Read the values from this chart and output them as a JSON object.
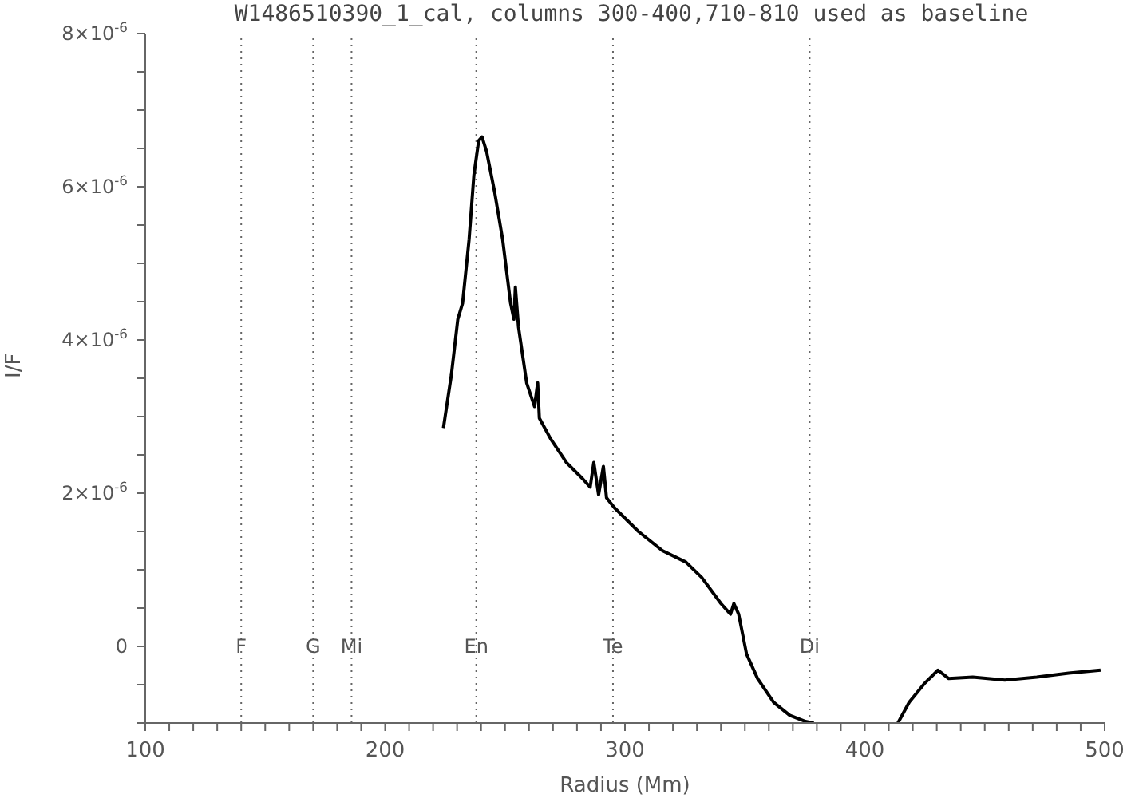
{
  "chart_data": {
    "type": "line",
    "title": "W1486510390_1_cal, columns 300-400,710-810 used as baseline",
    "xlabel": "Radius (Mm)",
    "ylabel": "I/F",
    "x": [
      224.3,
      227.6,
      230.3,
      232.3,
      235,
      237,
      239,
      240.4,
      242.3,
      245.6,
      249,
      252.3,
      253.7,
      254.3,
      255.6,
      259,
      262.3,
      263.6,
      264.3,
      269,
      275.6,
      282.3,
      285.5,
      287,
      289,
      291,
      292.3,
      295.6,
      305.6,
      315.6,
      325.4,
      332,
      340,
      344,
      345.4,
      347.4,
      350.7,
      355.3,
      362,
      368.7,
      375.3,
      378.7,
      395,
      413.8,
      418.5,
      425,
      430.5,
      435,
      445,
      458.4,
      471.7,
      485,
      498.3
    ],
    "series": [
      {
        "color": "#000000",
        "values": [
          2.85e-06,
          3.54e-06,
          4.27e-06,
          4.48e-06,
          5.31e-06,
          6.15e-06,
          6.6e-06,
          6.65e-06,
          6.46e-06,
          5.94e-06,
          5.31e-06,
          4.48e-06,
          4.27e-06,
          4.69e-06,
          4.17e-06,
          3.44e-06,
          3.13e-06,
          3.44e-06,
          2.98e-06,
          2.71e-06,
          2.4e-06,
          2.19e-06,
          2.08e-06,
          2.4e-06,
          1.98e-06,
          2.35e-06,
          1.94e-06,
          1.81e-06,
          1.5e-06,
          1.25e-06,
          1.1e-06,
          9e-07,
          5.6e-07,
          4.2e-07,
          5.6e-07,
          4.2e-07,
          -1e-07,
          -4.2e-07,
          -7.3e-07,
          -9e-07,
          -9.8e-07,
          -1e-06,
          null,
          -1e-06,
          -7.3e-07,
          -4.8e-07,
          -3.1e-07,
          -4.2e-07,
          -4e-07,
          -4.4e-07,
          -4e-07,
          -3.5e-07,
          -3.1e-07
        ]
      }
    ],
    "xlim": [
      100,
      500
    ],
    "xticks": [
      100,
      {
        "value": 110,
        "label": null
      },
      {
        "value": 120,
        "label": null
      },
      {
        "value": 130,
        "label": null
      },
      {
        "value": 140,
        "label": null
      },
      {
        "value": 150,
        "label": null
      },
      {
        "value": 160,
        "label": null
      },
      {
        "value": 170,
        "label": null
      },
      {
        "value": 180,
        "label": null
      },
      {
        "value": 190,
        "label": null
      },
      200,
      {
        "value": 210,
        "label": null
      },
      {
        "value": 220,
        "label": null
      },
      {
        "value": 230,
        "label": null
      },
      {
        "value": 240,
        "label": null
      },
      {
        "value": 250,
        "label": null
      },
      {
        "value": 260,
        "label": null
      },
      {
        "value": 270,
        "label": null
      },
      {
        "value": 280,
        "label": null
      },
      {
        "value": 290,
        "label": null
      },
      300,
      {
        "value": 310,
        "label": null
      },
      {
        "value": 320,
        "label": null
      },
      {
        "value": 330,
        "label": null
      },
      {
        "value": 340,
        "label": null
      },
      {
        "value": 350,
        "label": null
      },
      {
        "value": 360,
        "label": null
      },
      {
        "value": 370,
        "label": null
      },
      {
        "value": 380,
        "label": null
      },
      {
        "value": 390,
        "label": null
      },
      400,
      {
        "value": 410,
        "label": null
      },
      {
        "value": 420,
        "label": null
      },
      {
        "value": 430,
        "label": null
      },
      {
        "value": 440,
        "label": null
      },
      {
        "value": 450,
        "label": null
      },
      {
        "value": 460,
        "label": null
      },
      {
        "value": 470,
        "label": null
      },
      {
        "value": 480,
        "label": null
      },
      {
        "value": 490,
        "label": null
      },
      500
    ],
    "ylim": [
      -1e-06,
      8e-06
    ],
    "yticks": [
      {
        "value": -1e-06,
        "label": null
      },
      {
        "value": -5e-07,
        "label": null
      },
      0,
      {
        "value": 5e-07,
        "label": null
      },
      {
        "value": 1e-06,
        "label": null
      },
      {
        "value": 1.5e-06,
        "label": null
      },
      {
        "value": 2e-06,
        "label": "2×10$^{-6}$"
      },
      {
        "value": 2.5e-06,
        "label": null
      },
      {
        "value": 3e-06,
        "label": null
      },
      {
        "value": 3.5e-06,
        "label": null
      },
      {
        "value": 4e-06,
        "label": "4×10$^{-6}$"
      },
      {
        "value": 4.5e-06,
        "label": null
      },
      {
        "value": 5e-06,
        "label": null
      },
      {
        "value": 5.5e-06,
        "label": null
      },
      {
        "value": 6e-06,
        "label": "6×10$^{-6}$"
      },
      {
        "value": 6.5e-06,
        "label": null
      },
      {
        "value": 7e-06,
        "label": null
      },
      {
        "value": 7.5e-06,
        "label": null
      },
      {
        "value": 8e-06,
        "label": "8×10$^{-6}$"
      }
    ],
    "ref_lines": [
      {
        "axis": "x",
        "value": 140,
        "label": "F",
        "color": "#666666",
        "line_style": "dotted"
      },
      {
        "axis": "x",
        "value": 170,
        "label": "G",
        "color": "#666666",
        "line_style": "dotted"
      },
      {
        "axis": "x",
        "value": 186,
        "label": "Mi",
        "color": "#666666",
        "line_style": "dotted"
      },
      {
        "axis": "x",
        "value": 238,
        "label": "En",
        "color": "#666666",
        "line_style": "dotted"
      },
      {
        "axis": "x",
        "value": 295,
        "label": "Te",
        "color": "#666666",
        "line_style": "dotted"
      },
      {
        "axis": "x",
        "value": 377,
        "label": "Di",
        "color": "#666666",
        "line_style": "dotted"
      }
    ],
    "grid": false,
    "legend": false,
    "marker": "none",
    "line_style": "solid"
  }
}
